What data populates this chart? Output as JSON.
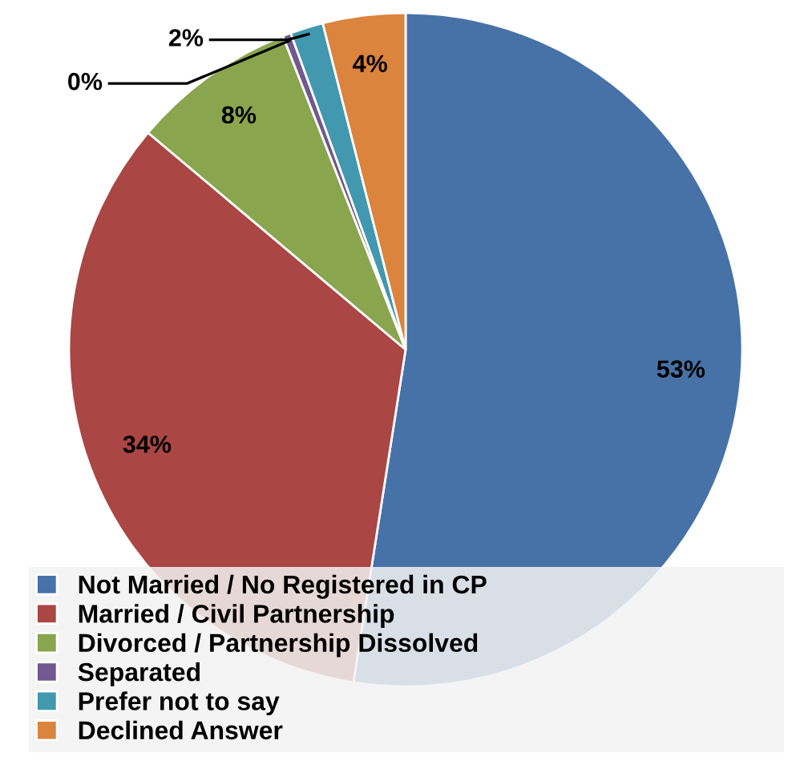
{
  "chart_data": {
    "type": "pie",
    "categories": [
      "Not Married / No Registered in CP",
      "Married / Civil Partnership",
      "Divorced / Partnership Dissolved",
      "Separated",
      "Prefer not to say",
      "Declined Answer"
    ],
    "values": [
      53,
      34,
      8,
      0.4,
      1.6,
      4
    ],
    "value_labels": [
      "53%",
      "34%",
      "8%",
      "0%",
      "2%",
      "4%"
    ],
    "colors": [
      "#4672a8",
      "#aa4643",
      "#89a54e",
      "#71588f",
      "#4198af",
      "#db843d"
    ],
    "legend": "bottom"
  }
}
